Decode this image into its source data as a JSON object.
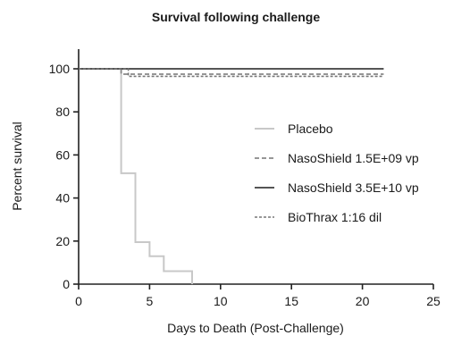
{
  "chart_data": {
    "type": "line",
    "subtype": "kaplan-meier step",
    "title": "Survival following challenge",
    "xlabel": "Days to Death (Post-Challenge)",
    "ylabel": "Percent survival",
    "xlim": [
      0,
      25
    ],
    "ylim": [
      0,
      100
    ],
    "x_ticks": [
      "0",
      "5",
      "10",
      "15",
      "20",
      "25"
    ],
    "y_ticks": [
      "0",
      "20",
      "40",
      "60",
      "80",
      "100"
    ],
    "grid": false,
    "legend_position": "right",
    "series": [
      {
        "name": "Placebo",
        "color": "#c8c8c8",
        "dash": "solid",
        "points": [
          [
            0,
            100
          ],
          [
            3,
            100
          ],
          [
            3,
            51.5
          ],
          [
            4,
            51.5
          ],
          [
            4,
            19.5
          ],
          [
            5,
            19.5
          ],
          [
            5,
            13
          ],
          [
            6,
            13
          ],
          [
            6,
            6
          ],
          [
            8,
            6
          ],
          [
            8,
            0
          ]
        ]
      },
      {
        "name": "NasoShield 1.5E+09 vp",
        "color": "#888888",
        "dash": "dashed",
        "points": [
          [
            0,
            100
          ],
          [
            3,
            100
          ],
          [
            3,
            97.5
          ],
          [
            21.5,
            97.5
          ]
        ]
      },
      {
        "name": "NasoShield 3.5E+10 vp",
        "color": "#555555",
        "dash": "solid",
        "points": [
          [
            0,
            100
          ],
          [
            21.5,
            100
          ]
        ]
      },
      {
        "name": "BioThrax 1:16 dil",
        "color": "#777777",
        "dash": "dotted",
        "points": [
          [
            0,
            100
          ],
          [
            3.5,
            100
          ],
          [
            3.5,
            96.5
          ],
          [
            21.5,
            96.5
          ]
        ]
      }
    ]
  }
}
